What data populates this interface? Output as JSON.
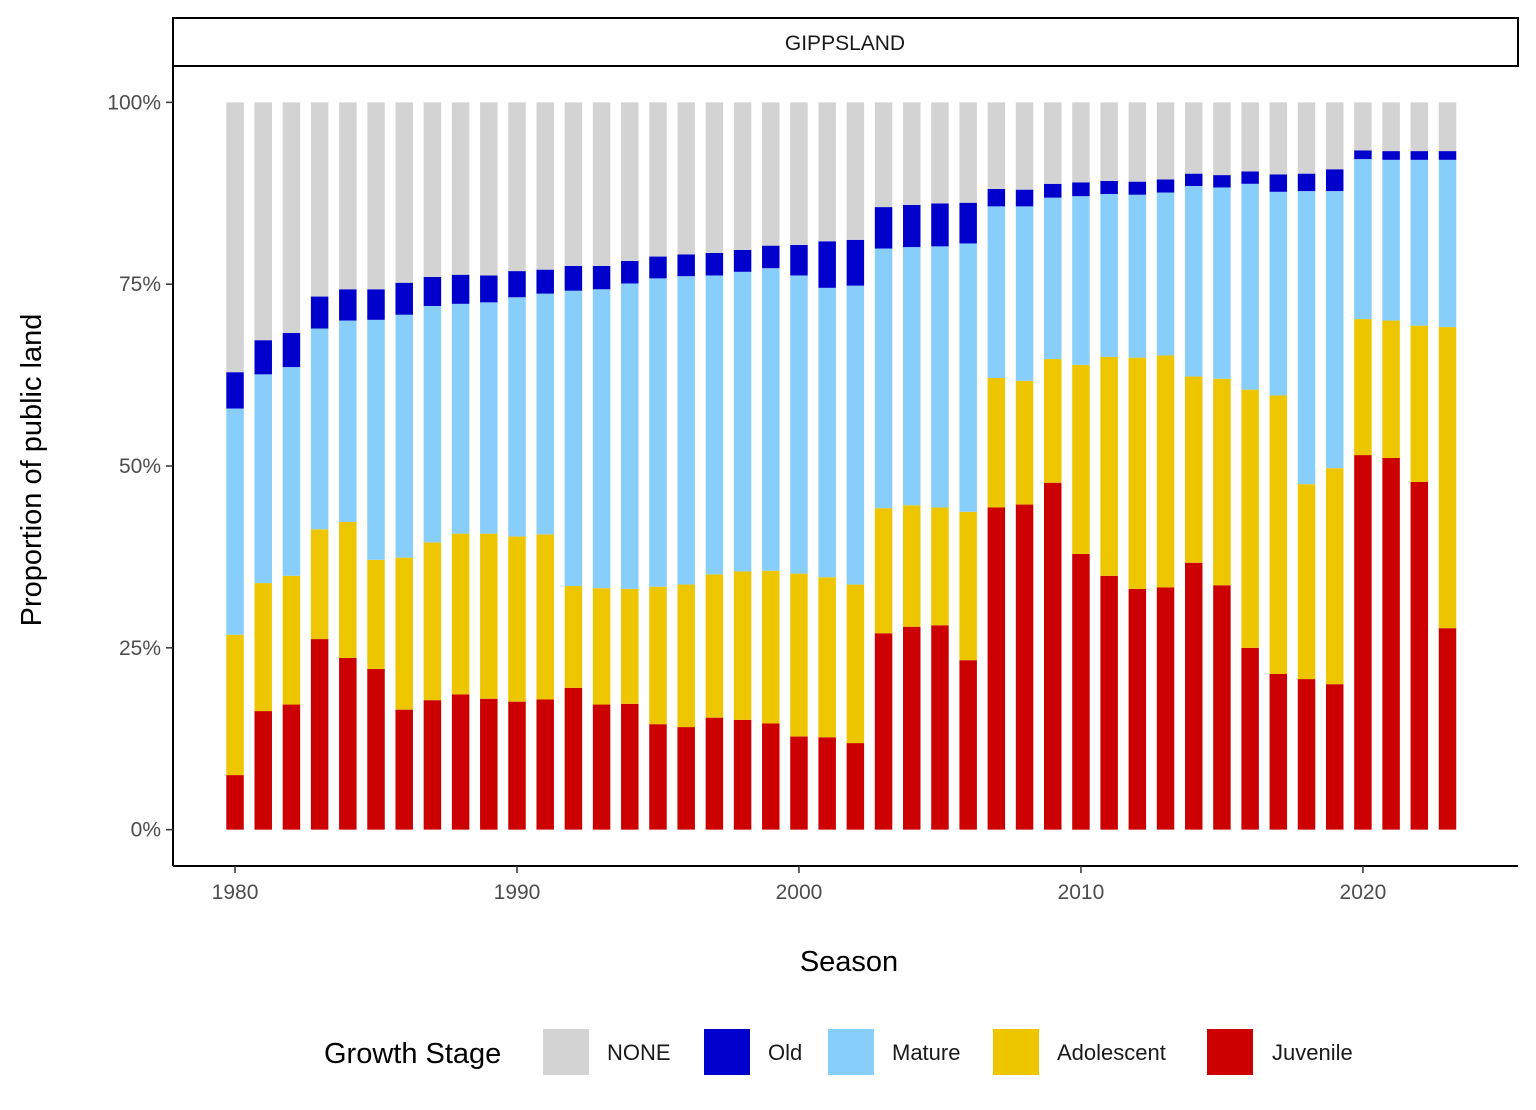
{
  "chart_data": {
    "type": "bar",
    "stacked": true,
    "facet_title": "GIPPSLAND",
    "xlabel": "Season",
    "ylabel": "Proportion of public land",
    "x": [
      1980,
      1981,
      1982,
      1983,
      1984,
      1985,
      1986,
      1987,
      1988,
      1989,
      1990,
      1991,
      1992,
      1993,
      1994,
      1995,
      1996,
      1997,
      1998,
      1999,
      2000,
      2001,
      2002,
      2003,
      2004,
      2005,
      2006,
      2007,
      2008,
      2009,
      2010,
      2011,
      2012,
      2013,
      2014,
      2015,
      2016,
      2017,
      2018,
      2019,
      2020,
      2021,
      2022,
      2023
    ],
    "xlim": [
      1977.8,
      2025.5
    ],
    "xticks": [
      1980,
      1990,
      2000,
      2010,
      2020
    ],
    "xtick_labels": [
      "1980",
      "1990",
      "2000",
      "2010",
      "2020"
    ],
    "ylim": [
      -0.05,
      1.05
    ],
    "yticks": [
      0,
      0.25,
      0.5,
      0.75,
      1.0
    ],
    "ytick_labels": [
      "0%",
      "25%",
      "50%",
      "75%",
      "100%"
    ],
    "series": [
      {
        "name": "Juvenile",
        "color": "#cc0000",
        "values": [
          0.075,
          0.163,
          0.172,
          0.262,
          0.236,
          0.221,
          0.165,
          0.178,
          0.186,
          0.18,
          0.176,
          0.179,
          0.195,
          0.172,
          0.173,
          0.145,
          0.141,
          0.154,
          0.151,
          0.146,
          0.128,
          0.127,
          0.119,
          0.27,
          0.279,
          0.281,
          0.233,
          0.443,
          0.447,
          0.477,
          0.379,
          0.349,
          0.331,
          0.333,
          0.367,
          0.336,
          0.25,
          0.214,
          0.207,
          0.2,
          0.515,
          0.511,
          0.478,
          0.277
        ]
      },
      {
        "name": "Adolescent",
        "color": "#eec600",
        "values": [
          0.193,
          0.176,
          0.177,
          0.151,
          0.187,
          0.15,
          0.209,
          0.217,
          0.221,
          0.227,
          0.227,
          0.227,
          0.14,
          0.16,
          0.158,
          0.189,
          0.196,
          0.197,
          0.204,
          0.21,
          0.224,
          0.22,
          0.218,
          0.172,
          0.167,
          0.162,
          0.204,
          0.178,
          0.17,
          0.17,
          0.26,
          0.301,
          0.318,
          0.319,
          0.256,
          0.284,
          0.355,
          0.383,
          0.268,
          0.297,
          0.187,
          0.189,
          0.215,
          0.414
        ]
      },
      {
        "name": "Mature",
        "color": "#87cefa",
        "values": [
          0.311,
          0.287,
          0.287,
          0.276,
          0.277,
          0.33,
          0.334,
          0.325,
          0.316,
          0.318,
          0.329,
          0.331,
          0.406,
          0.411,
          0.42,
          0.424,
          0.424,
          0.411,
          0.412,
          0.416,
          0.41,
          0.398,
          0.411,
          0.357,
          0.355,
          0.359,
          0.369,
          0.236,
          0.24,
          0.222,
          0.232,
          0.224,
          0.224,
          0.224,
          0.262,
          0.263,
          0.283,
          0.28,
          0.403,
          0.381,
          0.22,
          0.221,
          0.228,
          0.23
        ]
      },
      {
        "name": "Old",
        "color": "#0000cd",
        "values": [
          0.05,
          0.047,
          0.047,
          0.044,
          0.043,
          0.042,
          0.044,
          0.04,
          0.04,
          0.037,
          0.036,
          0.033,
          0.034,
          0.032,
          0.031,
          0.03,
          0.03,
          0.031,
          0.03,
          0.031,
          0.042,
          0.064,
          0.063,
          0.057,
          0.058,
          0.059,
          0.056,
          0.024,
          0.023,
          0.019,
          0.019,
          0.018,
          0.018,
          0.018,
          0.017,
          0.017,
          0.017,
          0.024,
          0.024,
          0.03,
          0.012,
          0.012,
          0.012,
          0.012
        ]
      },
      {
        "name": "NONE",
        "color": "#d3d3d3",
        "values": [
          0.371,
          0.327,
          0.317,
          0.267,
          0.257,
          0.257,
          0.248,
          0.24,
          0.237,
          0.238,
          0.232,
          0.23,
          0.225,
          0.225,
          0.218,
          0.212,
          0.209,
          0.207,
          0.203,
          0.197,
          0.196,
          0.191,
          0.189,
          0.144,
          0.141,
          0.139,
          0.138,
          0.119,
          0.12,
          0.112,
          0.11,
          0.108,
          0.109,
          0.106,
          0.098,
          0.1,
          0.095,
          0.099,
          0.098,
          0.092,
          0.066,
          0.067,
          0.067,
          0.067
        ]
      }
    ],
    "legend": {
      "title": "Growth Stage",
      "position": "bottom",
      "entries": [
        {
          "name": "NONE",
          "color": "#d3d3d3"
        },
        {
          "name": "Old",
          "color": "#0000cd"
        },
        {
          "name": "Mature",
          "color": "#87cefa"
        },
        {
          "name": "Adolescent",
          "color": "#eec600"
        },
        {
          "name": "Juvenile",
          "color": "#cc0000"
        }
      ]
    },
    "grid": false
  }
}
